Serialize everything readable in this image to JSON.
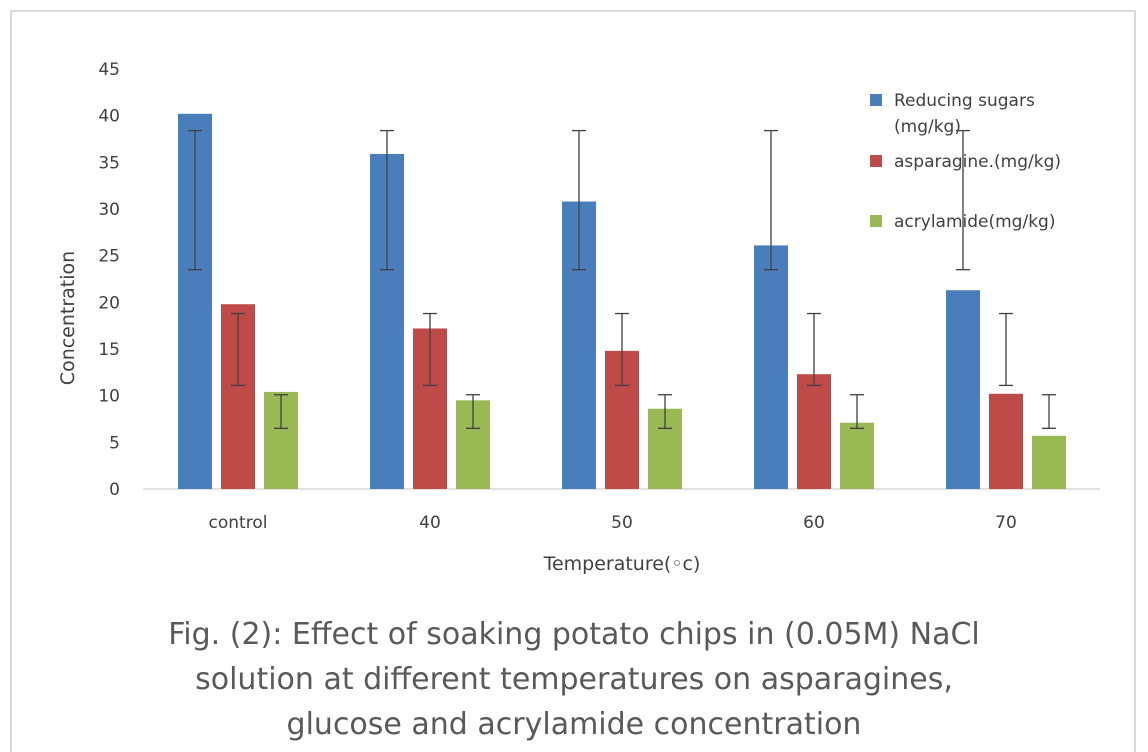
{
  "chart_data": {
    "type": "bar",
    "categories": [
      "control",
      "40",
      "50",
      "60",
      "70"
    ],
    "series": [
      {
        "name": "Reducing sugars (mg/kg)",
        "color": "#4a7ebb",
        "values": [
          40.2,
          35.9,
          30.8,
          26.1,
          21.3
        ],
        "err_low": [
          23.5,
          23.5,
          23.5,
          23.5,
          23.5
        ],
        "err_high": [
          38.4,
          38.4,
          38.4,
          38.4,
          38.4
        ]
      },
      {
        "name": "asparagine.(mg/kg)",
        "color": "#be4b48",
        "values": [
          19.8,
          17.2,
          14.8,
          12.3,
          10.2
        ],
        "err_low": [
          11.1,
          11.1,
          11.1,
          11.1,
          11.1
        ],
        "err_high": [
          18.8,
          18.8,
          18.8,
          18.8,
          18.8
        ]
      },
      {
        "name": "acrylamide(mg/kg)",
        "color": "#98b954",
        "values": [
          10.4,
          9.5,
          8.6,
          7.1,
          5.7
        ],
        "err_low": [
          6.5,
          6.5,
          6.5,
          6.5,
          6.5
        ],
        "err_high": [
          10.1,
          10.1,
          10.1,
          10.1,
          10.1
        ]
      }
    ],
    "xlabel": "Temperature(◦c)",
    "ylabel": "Concentration",
    "ylim": [
      0,
      45
    ],
    "yticks": [
      0,
      5,
      10,
      15,
      20,
      25,
      30,
      35,
      40,
      45
    ],
    "legend_position": "top-right",
    "grid": false
  },
  "caption": {
    "line1": "Fig. (2): Effect of soaking potato chips in (0.05M) NaCl",
    "line2": "solution at different temperatures on asparagines,",
    "line3": "glucose and acrylamide concentration"
  }
}
